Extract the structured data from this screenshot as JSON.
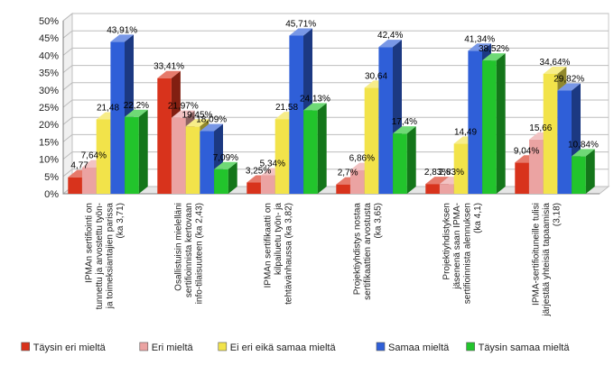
{
  "chart_data": {
    "type": "bar",
    "subtype": "3d-grouped",
    "ylim": [
      0,
      50
    ],
    "yticks": [
      "0%",
      "5%",
      "10%",
      "15%",
      "20%",
      "25%",
      "30%",
      "35%",
      "40%",
      "45%",
      "50%"
    ],
    "grid": true,
    "legend_position": "bottom",
    "categories": [
      [
        "IPMAn sertifiointi on",
        "tunnettu ja arvostettu työn-",
        "ja toimeksiantajien parissa",
        "(ka 3,71)"
      ],
      [
        "Osallistuisin mielelläni",
        "sertifioinnista kertovaan",
        "info-tilaisuuteen (ka 2,43)"
      ],
      [
        "IPMAn sertifikaatti on",
        "kilpailuetu työn- ja",
        "tehtävänhaussa (ka 3,82)"
      ],
      [
        "Projektiyhdistys nostaa",
        "sertifikaattien arvostusta",
        "(ka 3,65)"
      ],
      [
        "Projektiyhdistyksen",
        "jäsenenä saan IPMA-",
        "sertifioinnista alennuksen",
        "(ka 4,1)"
      ],
      [
        "IPMA-sertifioituneille tulisi",
        "järjestää yhteisiä tapaamisia",
        "(3,18)"
      ]
    ],
    "series": [
      {
        "name": "Täysin eri mieltä",
        "color": "#d8331c",
        "values": [
          4.77,
          33.41,
          3.25,
          2.7,
          2.83,
          9.04
        ],
        "labels": [
          "4,77",
          "33,41%",
          "3,25%",
          "2,7%",
          "2,83%",
          "9,04%"
        ]
      },
      {
        "name": "Eri mieltä",
        "color": "#eba3a2",
        "values": [
          7.64,
          21.97,
          5.34,
          6.86,
          2.83,
          15.66
        ],
        "labels": [
          "7,64%",
          "21,97%",
          "5,34%",
          "6,86%",
          "2,83%",
          "15,66"
        ]
      },
      {
        "name": "Ei eri eikä samaa mieltä",
        "color": "#f2e34a",
        "values": [
          21.48,
          19.45,
          21.58,
          30.64,
          14.49,
          34.64
        ],
        "labels": [
          "21,48",
          "19,45%",
          "21,58",
          "30,64",
          "14,49",
          "34,64%"
        ]
      },
      {
        "name": "Samaa mieltä",
        "color": "#2f5fd8",
        "values": [
          43.91,
          18.09,
          45.71,
          42.4,
          41.34,
          29.82
        ],
        "labels": [
          "43,91%",
          "18,09%",
          "45,71%",
          "42,4%",
          "41,34%",
          "29,82%"
        ]
      },
      {
        "name": "Täysin samaa mieltä",
        "color": "#22c42c",
        "values": [
          22.2,
          7.09,
          24.13,
          17.4,
          38.52,
          10.84
        ],
        "labels": [
          "22,2%",
          "7,09%",
          "24,13%",
          "17,4%",
          "38,52%",
          "10,84%"
        ]
      }
    ]
  }
}
